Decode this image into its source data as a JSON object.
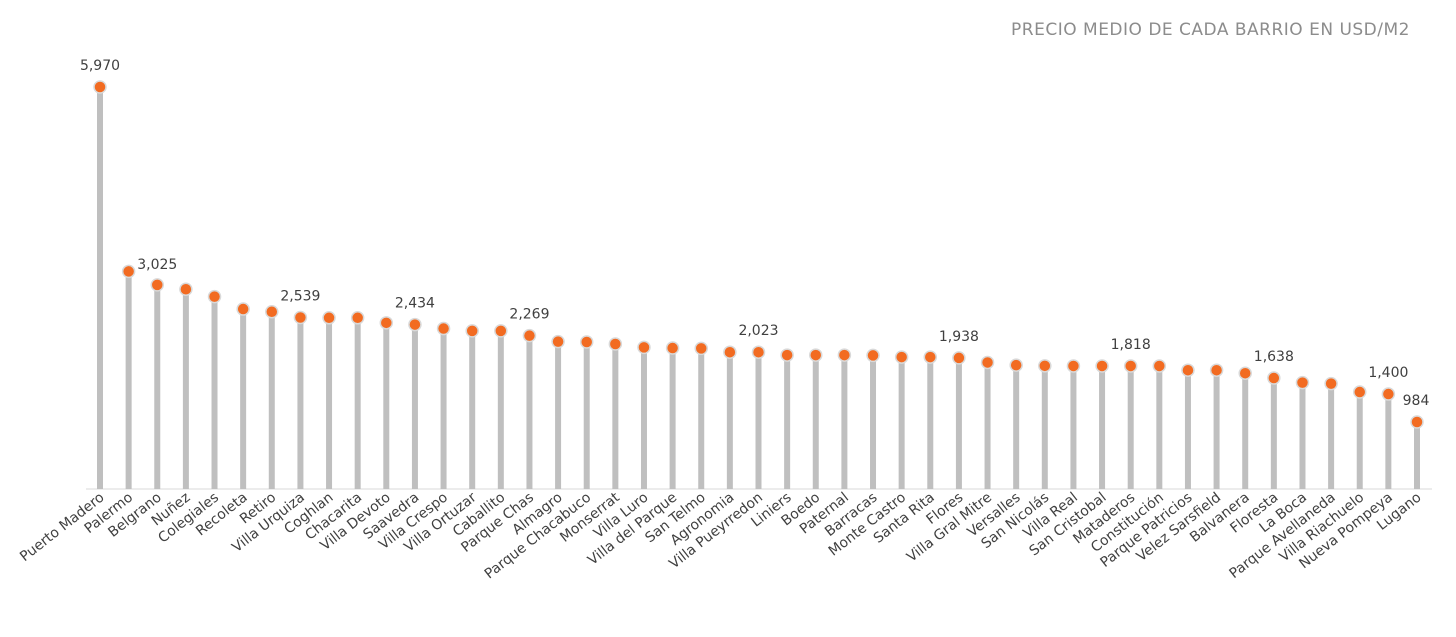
{
  "chart_data": {
    "type": "lollipop",
    "title": "PRECIO MEDIO DE CADA BARRIO EN USD/M2",
    "xlabel": "",
    "ylabel": "",
    "ylim": [
      0,
      6000
    ],
    "grid": false,
    "legend": "none",
    "colors": {
      "marker": "#f26b21",
      "stem": "#bfbfbf"
    },
    "categories": [
      "Puerto Madero",
      "Palermo",
      "Belgrano",
      "Nuñez",
      "Colegiales",
      "Recoleta",
      "Retiro",
      "Villa Urquiza",
      "Coghlan",
      "Chacarita",
      "Villa Devoto",
      "Saavedra",
      "Villa Crespo",
      "Villa Ortuzar",
      "Caballito",
      "Parque Chas",
      "Almagro",
      "Parque Chacabuco",
      "Monserrat",
      "Villa Luro",
      "Villa del Parque",
      "San Telmo",
      "Agronomia",
      "Villa Pueyrredon",
      "Liniers",
      "Boedo",
      "Paternal",
      "Barracas",
      "Monte Castro",
      "Santa Rita",
      "Flores",
      "Villa Gral Mitre",
      "Versalles",
      "San Nicolás",
      "Villa Real",
      "San Cristobal",
      "Mataderos",
      "Constitución",
      "Parque Patricios",
      "Velez Sarsfield",
      "Balvanera",
      "Floresta",
      "La Boca",
      "Parque Avellaneda",
      "Villa Riachuelo",
      "Nueva Pompeya",
      "Lugano"
    ],
    "values": [
      5970,
      3225,
      3025,
      2960,
      2850,
      2665,
      2625,
      2539,
      2535,
      2535,
      2460,
      2434,
      2375,
      2340,
      2340,
      2269,
      2180,
      2175,
      2145,
      2095,
      2085,
      2080,
      2023,
      2023,
      1980,
      1980,
      1980,
      1975,
      1950,
      1950,
      1938,
      1870,
      1830,
      1820,
      1818,
      1818,
      1818,
      1818,
      1755,
      1755,
      1710,
      1638,
      1570,
      1555,
      1430,
      1400,
      984
    ],
    "data_labels": [
      {
        "index": 0,
        "text": "5,970"
      },
      {
        "index": 2,
        "text": "3,025"
      },
      {
        "index": 7,
        "text": "2,539"
      },
      {
        "index": 11,
        "text": "2,434"
      },
      {
        "index": 15,
        "text": "2,269"
      },
      {
        "index": 23,
        "text": "2,023"
      },
      {
        "index": 30,
        "text": "1,938"
      },
      {
        "index": 36,
        "text": "1,818"
      },
      {
        "index": 41,
        "text": "1,638"
      },
      {
        "index": 45,
        "text": "1,400"
      },
      {
        "index": 46,
        "text": "984"
      }
    ]
  }
}
